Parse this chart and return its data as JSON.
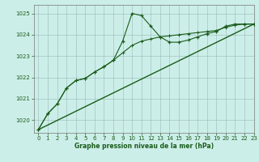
{
  "title": "Graphe pression niveau de la mer (hPa)",
  "bg_color": "#cceee8",
  "plot_bg": "#cceee8",
  "grid_color": "#99bbbb",
  "line_color": "#1a5c1a",
  "xlim": [
    -0.5,
    23
  ],
  "ylim": [
    1019.4,
    1025.4
  ],
  "yticks": [
    1020,
    1021,
    1022,
    1023,
    1024,
    1025
  ],
  "xticks": [
    0,
    1,
    2,
    3,
    4,
    5,
    6,
    7,
    8,
    9,
    10,
    11,
    12,
    13,
    14,
    15,
    16,
    17,
    18,
    19,
    20,
    21,
    22,
    23
  ],
  "series_jagged": [
    1019.55,
    1020.3,
    1020.75,
    1021.5,
    1021.85,
    1021.95,
    1022.25,
    1022.5,
    1022.8,
    1023.7,
    1025.0,
    1024.9,
    1024.4,
    1023.9,
    1023.65,
    1023.65,
    1023.75,
    1023.9,
    1024.05,
    1024.15,
    1024.4,
    1024.5,
    1024.5,
    1024.5
  ],
  "series_smooth": [
    1019.55,
    1020.3,
    1020.75,
    1021.5,
    1021.85,
    1021.95,
    1022.25,
    1022.5,
    1022.8,
    1023.15,
    1023.5,
    1023.7,
    1023.8,
    1023.9,
    1023.95,
    1024.0,
    1024.05,
    1024.1,
    1024.15,
    1024.2,
    1024.35,
    1024.45,
    1024.5,
    1024.5
  ],
  "trend_x": [
    0,
    23
  ],
  "trend_y": [
    1019.55,
    1024.5
  ]
}
